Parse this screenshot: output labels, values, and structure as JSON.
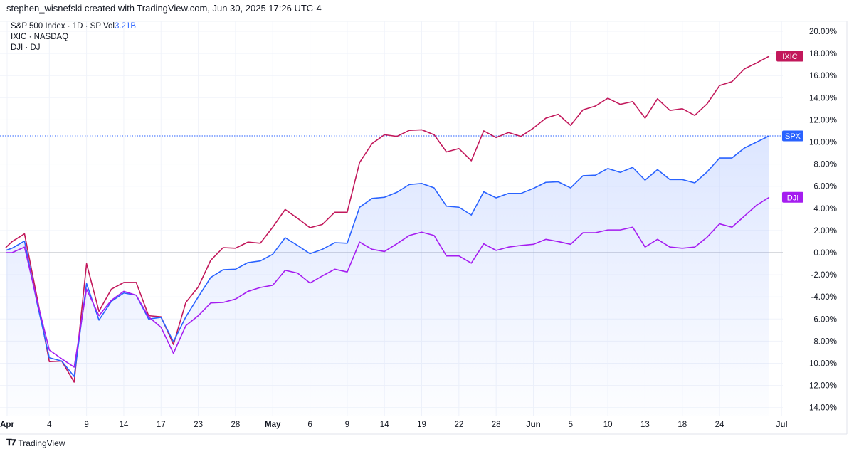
{
  "header": {
    "credit": "stephen_wisnefski created with TradingView.com, Jun 30, 2025 17:26 UTC-4"
  },
  "legend": {
    "spx": "S&P 500 Index · 1D · SP  Vol",
    "spx_vol": "3.21B",
    "ixic": "IXIC · NASDAQ",
    "dji": "DJI · DJ"
  },
  "footer": {
    "brand": "TradingView",
    "logo_icon": "tradingview-logo-icon"
  },
  "chart_data": {
    "type": "line",
    "title": "",
    "xlabel": "",
    "ylabel": "",
    "ylim": [
      -15,
      21
    ],
    "grid": true,
    "y_ticks": [
      "20.00%",
      "18.00%",
      "16.00%",
      "14.00%",
      "12.00%",
      "10.00%",
      "8.00%",
      "6.00%",
      "4.00%",
      "2.00%",
      "0.00%",
      "-2.00%",
      "-4.00%",
      "-6.00%",
      "-8.00%",
      "-10.00%",
      "-12.00%",
      "-14.00%"
    ],
    "y_tick_values": [
      20,
      18,
      16,
      14,
      12,
      10,
      8,
      6,
      4,
      2,
      0,
      -2,
      -4,
      -6,
      -8,
      -10,
      -12,
      -14
    ],
    "x_ticks": [
      {
        "label": "Apr",
        "index": 0.6,
        "bold": true
      },
      {
        "label": "4",
        "index": 4
      },
      {
        "label": "9",
        "index": 7
      },
      {
        "label": "14",
        "index": 10
      },
      {
        "label": "17",
        "index": 13
      },
      {
        "label": "23",
        "index": 16
      },
      {
        "label": "28",
        "index": 19
      },
      {
        "label": "May",
        "index": 22,
        "bold": true
      },
      {
        "label": "6",
        "index": 25
      },
      {
        "label": "9",
        "index": 28
      },
      {
        "label": "14",
        "index": 31
      },
      {
        "label": "19",
        "index": 34
      },
      {
        "label": "22",
        "index": 37
      },
      {
        "label": "28",
        "index": 40
      },
      {
        "label": "Jun",
        "index": 43,
        "bold": true
      },
      {
        "label": "5",
        "index": 46
      },
      {
        "label": "10",
        "index": 49
      },
      {
        "label": "13",
        "index": 52
      },
      {
        "label": "18",
        "index": 55
      },
      {
        "label": "24",
        "index": 58
      },
      {
        "label": "Jul",
        "index": 63,
        "bold": true
      }
    ],
    "x": [
      "Mar 31",
      "Apr 1",
      "Apr 2",
      "Apr 3",
      "Apr 4",
      "Apr 7",
      "Apr 8",
      "Apr 9",
      "Apr 10",
      "Apr 11",
      "Apr 14",
      "Apr 15",
      "Apr 16",
      "Apr 17",
      "Apr 21",
      "Apr 22",
      "Apr 23",
      "Apr 24",
      "Apr 25",
      "Apr 28",
      "Apr 29",
      "Apr 30",
      "May 1",
      "May 2",
      "May 5",
      "May 6",
      "May 7",
      "May 8",
      "May 9",
      "May 12",
      "May 13",
      "May 14",
      "May 15",
      "May 16",
      "May 19",
      "May 20",
      "May 21",
      "May 22",
      "May 23",
      "May 27",
      "May 28",
      "May 29",
      "May 30",
      "Jun 2",
      "Jun 3",
      "Jun 4",
      "Jun 5",
      "Jun 6",
      "Jun 9",
      "Jun 10",
      "Jun 11",
      "Jun 12",
      "Jun 13",
      "Jun 16",
      "Jun 17",
      "Jun 18",
      "Jun 20",
      "Jun 23",
      "Jun 24",
      "Jun 25",
      "Jun 26",
      "Jun 27",
      "Jun 30"
    ],
    "unit": "%",
    "series": [
      {
        "name": "IXIC",
        "color": "#c2185b",
        "values": [
          0.45,
          1.0,
          1.7,
          -4.0,
          -9.85,
          -9.8,
          -11.7,
          -1.0,
          -5.3,
          -3.3,
          -2.7,
          -2.7,
          -5.7,
          -5.8,
          -8.3,
          -4.5,
          -3.1,
          -0.7,
          0.45,
          0.4,
          0.95,
          0.85,
          2.3,
          3.9,
          3.1,
          2.25,
          2.55,
          3.65,
          3.65,
          8.15,
          9.85,
          10.65,
          10.5,
          11.05,
          11.1,
          10.65,
          9.1,
          9.4,
          8.3,
          11.0,
          10.4,
          10.85,
          10.5,
          11.25,
          12.15,
          12.5,
          11.5,
          12.9,
          13.25,
          13.95,
          13.4,
          13.65,
          12.15,
          13.9,
          12.85,
          13.0,
          12.4,
          13.45,
          15.1,
          15.45,
          16.6,
          17.15,
          17.75
        ]
      },
      {
        "name": "SPX",
        "color": "#2962ff",
        "area": true,
        "values": [
          0.2,
          0.4,
          1.05,
          -4.5,
          -9.5,
          -9.8,
          -11.2,
          -2.8,
          -6.1,
          -4.4,
          -3.65,
          -3.85,
          -6.0,
          -5.85,
          -8.05,
          -5.8,
          -4.0,
          -2.25,
          -1.55,
          -1.5,
          -0.9,
          -0.75,
          -0.15,
          1.35,
          0.65,
          -0.1,
          0.3,
          0.9,
          0.85,
          4.1,
          4.9,
          5.0,
          5.45,
          6.15,
          6.25,
          5.85,
          4.2,
          4.1,
          3.4,
          5.5,
          4.95,
          5.35,
          5.35,
          5.8,
          6.35,
          6.4,
          5.85,
          6.95,
          7.0,
          7.6,
          7.25,
          7.7,
          6.55,
          7.5,
          6.6,
          6.6,
          6.3,
          7.3,
          8.55,
          8.55,
          9.45,
          10.0,
          10.55
        ]
      },
      {
        "name": "DJI",
        "color": "#a51df0",
        "values": [
          0.0,
          0.0,
          0.5,
          -4.3,
          -8.8,
          -9.6,
          -10.35,
          -3.3,
          -5.7,
          -4.3,
          -3.5,
          -3.85,
          -5.8,
          -6.75,
          -9.1,
          -6.6,
          -5.7,
          -4.55,
          -4.5,
          -4.2,
          -3.5,
          -3.15,
          -2.95,
          -1.6,
          -1.85,
          -2.75,
          -2.1,
          -1.5,
          -1.75,
          0.95,
          0.3,
          0.1,
          0.8,
          1.55,
          1.85,
          1.55,
          -0.3,
          -0.3,
          -0.95,
          0.8,
          0.2,
          0.5,
          0.65,
          0.75,
          1.2,
          1.0,
          0.75,
          1.8,
          1.8,
          2.05,
          2.05,
          2.3,
          0.5,
          1.2,
          0.5,
          0.4,
          0.5,
          1.4,
          2.6,
          2.3,
          3.3,
          4.3,
          5.0
        ]
      }
    ],
    "last_value_labels": [
      "IXIC",
      "SPX",
      "DJI"
    ]
  }
}
